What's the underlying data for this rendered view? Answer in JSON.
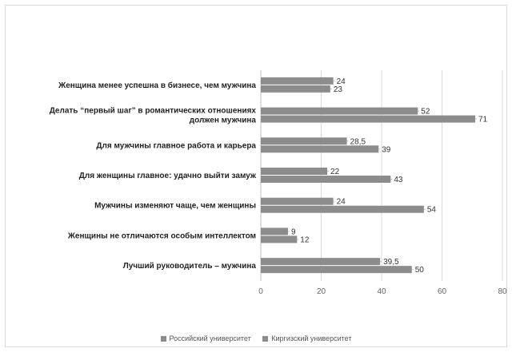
{
  "chart_data": {
    "type": "bar",
    "orientation": "horizontal",
    "categories": [
      [
        "Женщина менее успешна в бизнесе, чем мужчина"
      ],
      [
        "Делать “первый шаг” в романтических отношениях",
        "должен мужчина"
      ],
      [
        "Для мужчины главное работа и карьера"
      ],
      [
        "Для женщины главное: удачно выйти замуж"
      ],
      [
        "Мужчины изменяют чаще, чем женщины"
      ],
      [
        "Женщины не отличаются особым интеллектом"
      ],
      [
        "Лучший руководитель – мужчина"
      ]
    ],
    "series": [
      {
        "name": "Российский университет",
        "values": [
          24,
          52,
          28.5,
          22,
          24,
          9,
          39.5
        ],
        "labels": [
          "24",
          "52",
          "28,5",
          "22",
          "24",
          "9",
          "39,5"
        ],
        "color": "#8c8c8c"
      },
      {
        "name": "Киргизский университет",
        "values": [
          23,
          71,
          39,
          43,
          54,
          12,
          50
        ],
        "labels": [
          "23",
          "71",
          "39",
          "43",
          "54",
          "12",
          "50"
        ],
        "color": "#8c8c8c"
      }
    ],
    "xlim": [
      0,
      80
    ],
    "xticks": [
      0,
      20,
      40,
      60,
      80
    ],
    "grid": true,
    "legend_position": "bottom"
  }
}
